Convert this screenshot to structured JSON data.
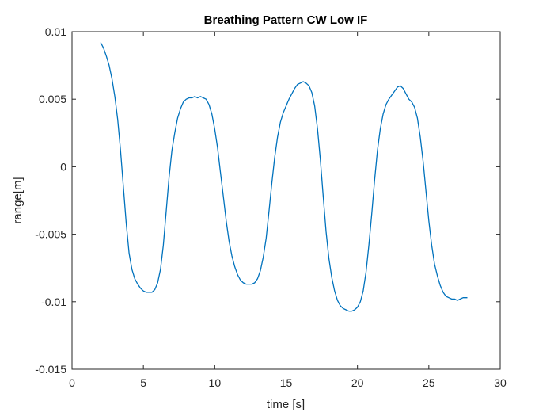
{
  "chart_data": {
    "type": "line",
    "title": "Breathing Pattern CW Low IF",
    "xlabel": "time [s]",
    "ylabel": "range[m]",
    "xlim": [
      0,
      30
    ],
    "ylim": [
      -0.015,
      0.01
    ],
    "xticks": [
      0,
      5,
      10,
      15,
      20,
      25,
      30
    ],
    "xtick_labels": [
      "0",
      "5",
      "10",
      "15",
      "20",
      "25",
      "30"
    ],
    "yticks": [
      -0.015,
      -0.01,
      -0.005,
      0,
      0.005,
      0.01
    ],
    "ytick_labels": [
      "-0.015",
      "-0.01",
      "-0.005",
      "0",
      "0.005",
      "0.01"
    ],
    "grid": false,
    "colors": {
      "line": "#0072BD",
      "axis": "#262626"
    },
    "series": [
      {
        "x": [
          2.0,
          2.2,
          2.4,
          2.6,
          2.8,
          3.0,
          3.2,
          3.4,
          3.6,
          3.8,
          4.0,
          4.2,
          4.4,
          4.6,
          4.8,
          5.0,
          5.2,
          5.4,
          5.6,
          5.8,
          6.0,
          6.2,
          6.4,
          6.6,
          6.8,
          7.0,
          7.2,
          7.4,
          7.6,
          7.8,
          8.0,
          8.2,
          8.4,
          8.6,
          8.8,
          9.0,
          9.2,
          9.4,
          9.6,
          9.8,
          10.0,
          10.2,
          10.4,
          10.6,
          10.8,
          11.0,
          11.2,
          11.4,
          11.6,
          11.8,
          12.0,
          12.2,
          12.4,
          12.6,
          12.8,
          13.0,
          13.2,
          13.4,
          13.6,
          13.8,
          14.0,
          14.2,
          14.4,
          14.6,
          14.8,
          15.0,
          15.2,
          15.4,
          15.6,
          15.8,
          16.0,
          16.2,
          16.4,
          16.6,
          16.8,
          17.0,
          17.2,
          17.4,
          17.6,
          17.8,
          18.0,
          18.2,
          18.4,
          18.6,
          18.8,
          19.0,
          19.2,
          19.4,
          19.6,
          19.8,
          20.0,
          20.2,
          20.4,
          20.6,
          20.8,
          21.0,
          21.2,
          21.4,
          21.6,
          21.8,
          22.0,
          22.2,
          22.4,
          22.6,
          22.8,
          23.0,
          23.2,
          23.4,
          23.6,
          23.8,
          24.0,
          24.2,
          24.4,
          24.6,
          24.8,
          25.0,
          25.2,
          25.4,
          25.6,
          25.8,
          26.0,
          26.2,
          26.4,
          26.6,
          26.8,
          27.0,
          27.2,
          27.4,
          27.7
        ],
        "y": [
          0.0092,
          0.0088,
          0.0082,
          0.0075,
          0.0065,
          0.0052,
          0.0035,
          0.0012,
          -0.0015,
          -0.0042,
          -0.0064,
          -0.0076,
          -0.0083,
          -0.0087,
          -0.009,
          -0.0092,
          -0.0093,
          -0.0093,
          -0.0093,
          -0.0091,
          -0.0086,
          -0.0076,
          -0.0058,
          -0.0033,
          -0.0008,
          0.0012,
          0.0025,
          0.0036,
          0.0043,
          0.0048,
          0.005,
          0.0051,
          0.0051,
          0.0052,
          0.0051,
          0.0052,
          0.0051,
          0.005,
          0.0046,
          0.0039,
          0.0028,
          0.0014,
          -0.0004,
          -0.0022,
          -0.004,
          -0.0055,
          -0.0066,
          -0.0074,
          -0.008,
          -0.0084,
          -0.0086,
          -0.0087,
          -0.0087,
          -0.0087,
          -0.0086,
          -0.0083,
          -0.0077,
          -0.0067,
          -0.0053,
          -0.0033,
          -0.0012,
          0.0007,
          0.0022,
          0.0033,
          0.004,
          0.0045,
          0.005,
          0.0054,
          0.0058,
          0.0061,
          0.0062,
          0.0063,
          0.0062,
          0.006,
          0.0055,
          0.0045,
          0.0028,
          0.0005,
          -0.0022,
          -0.0048,
          -0.0068,
          -0.0082,
          -0.0092,
          -0.0099,
          -0.0103,
          -0.0105,
          -0.0106,
          -0.0107,
          -0.0107,
          -0.0106,
          -0.0104,
          -0.01,
          -0.0092,
          -0.0078,
          -0.0058,
          -0.0035,
          -0.001,
          0.0012,
          0.0028,
          0.0039,
          0.0046,
          0.005,
          0.0053,
          0.0056,
          0.0059,
          0.006,
          0.0058,
          0.0054,
          0.005,
          0.0048,
          0.0044,
          0.0036,
          0.0022,
          0.0004,
          -0.0018,
          -0.004,
          -0.0058,
          -0.0072,
          -0.0081,
          -0.0088,
          -0.0093,
          -0.0096,
          -0.0097,
          -0.0098,
          -0.0098,
          -0.0099,
          -0.0098,
          -0.0097,
          -0.0097
        ]
      }
    ]
  }
}
